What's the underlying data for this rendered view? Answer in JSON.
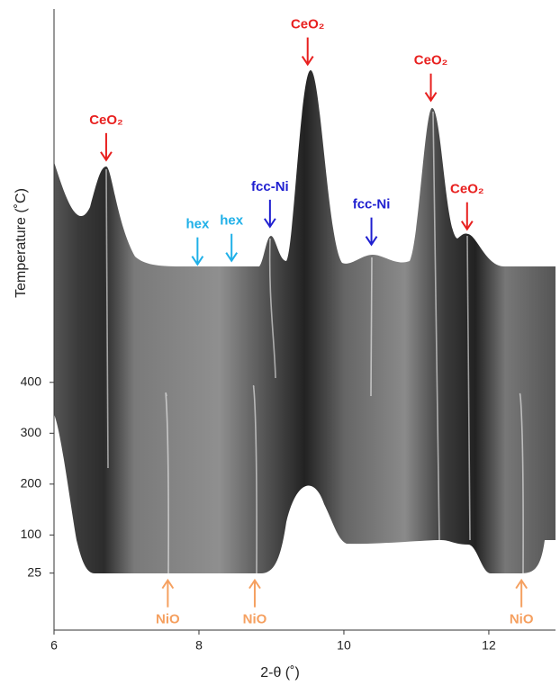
{
  "chart_data": {
    "type": "surface",
    "xlabel": "2-θ (˚)",
    "ylabel": "Temperature (˚C)",
    "xlim": [
      6,
      12.92
    ],
    "xticks": [
      6,
      8,
      10,
      12
    ],
    "ylim": [
      -87,
      1134
    ],
    "yticks": [
      25,
      100,
      200,
      300,
      400
    ],
    "annotations": [
      {
        "text": "CeO₂",
        "x": 6.72,
        "y": 837,
        "color": "#e8201f",
        "side": "above"
      },
      {
        "text": "CeO₂",
        "x": 9.5,
        "y": 1025,
        "color": "#e8201f",
        "side": "above"
      },
      {
        "text": "CeO₂",
        "x": 11.2,
        "y": 954,
        "color": "#e8201f",
        "side": "above"
      },
      {
        "text": "CeO₂",
        "x": 11.7,
        "y": 701,
        "color": "#e8201f",
        "side": "above"
      },
      {
        "text": "fcc-Ni",
        "x": 8.98,
        "y": 706,
        "color": "#1f1fd0",
        "side": "above"
      },
      {
        "text": "fcc-Ni",
        "x": 10.38,
        "y": 671,
        "color": "#1f1fd0",
        "side": "above"
      },
      {
        "text": "hex",
        "x": 7.98,
        "y": 632,
        "color": "#1fb0e8",
        "side": "above"
      },
      {
        "text": "hex",
        "x": 8.45,
        "y": 639,
        "color": "#1fb0e8",
        "side": "above"
      },
      {
        "text": "NiO",
        "x": 7.57,
        "y": 11,
        "color": "#f5a060",
        "side": "below"
      },
      {
        "text": "NiO",
        "x": 8.77,
        "y": 11,
        "color": "#f5a060",
        "side": "below"
      },
      {
        "text": "NiO",
        "x": 12.45,
        "y": 11,
        "color": "#f5a060",
        "side": "below"
      }
    ]
  }
}
